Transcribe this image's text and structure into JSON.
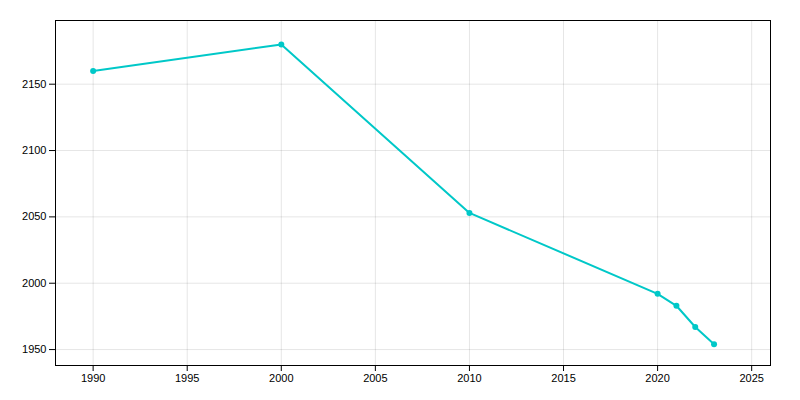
{
  "chart_data": {
    "type": "line",
    "x": [
      1990,
      2000,
      2010,
      2020,
      2021,
      2022,
      2023
    ],
    "values": [
      2160,
      2180,
      2053,
      1992,
      1983,
      1967,
      1954
    ],
    "color": "#00C8C8",
    "marker": "circle",
    "xlim": [
      1988,
      2026
    ],
    "ylim": [
      1938,
      2198
    ],
    "xticks": [
      1990,
      1995,
      2000,
      2005,
      2010,
      2015,
      2020,
      2025
    ],
    "yticks": [
      1950,
      2000,
      2050,
      2100,
      2150
    ],
    "grid": true
  }
}
